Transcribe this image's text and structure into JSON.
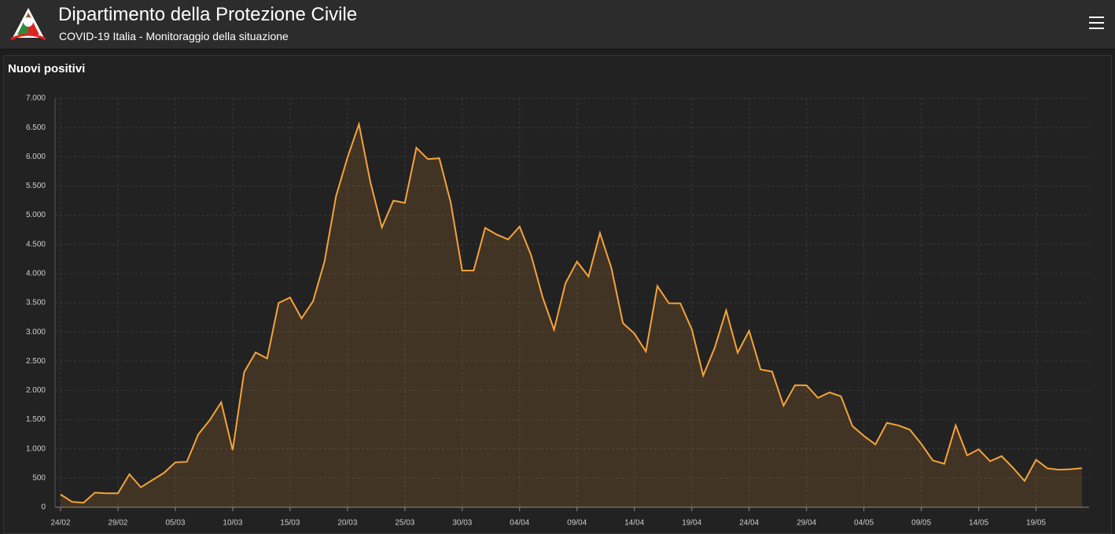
{
  "header": {
    "title": "Dipartimento della Protezione Civile",
    "subtitle": "COVID-19 Italia - Monitoraggio della situazione"
  },
  "chart_data": {
    "type": "area",
    "title": "Nuovi positivi",
    "color": "#f5a33a",
    "grid": true,
    "categories": [
      "24/02",
      null,
      null,
      null,
      null,
      "29/02",
      null,
      null,
      null,
      null,
      "05/03",
      null,
      null,
      null,
      null,
      "10/03",
      null,
      null,
      null,
      null,
      "15/03",
      null,
      null,
      null,
      null,
      "20/03",
      null,
      null,
      null,
      null,
      "25/03",
      null,
      null,
      null,
      null,
      "30/03",
      null,
      null,
      null,
      null,
      "04/04",
      null,
      null,
      null,
      null,
      "09/04",
      null,
      null,
      null,
      null,
      "14/04",
      null,
      null,
      null,
      null,
      "19/04",
      null,
      null,
      null,
      null,
      "24/04",
      null,
      null,
      null,
      null,
      "29/04",
      null,
      null,
      null,
      null,
      "04/05",
      null,
      null,
      null,
      null,
      "09/05",
      null,
      null,
      null,
      null,
      "14/05",
      null,
      null,
      null,
      null,
      "19/05",
      null,
      null,
      null,
      null
    ],
    "values": [
      221,
      93,
      78,
      250,
      238,
      240,
      566,
      342,
      466,
      587,
      769,
      778,
      1247,
      1492,
      1797,
      977,
      2313,
      2651,
      2547,
      3497,
      3590,
      3233,
      3526,
      4207,
      5322,
      5986,
      6557,
      5560,
      4789,
      5249,
      5210,
      6153,
      5959,
      5974,
      5217,
      4050,
      4053,
      4782,
      4668,
      4585,
      4805,
      4316,
      3599,
      3039,
      3836,
      4204,
      3951,
      4694,
      4092,
      3153,
      2972,
      2667,
      3786,
      3493,
      3491,
      3047,
      2256,
      2729,
      3370,
      2646,
      3021,
      2357,
      2324,
      1739,
      2091,
      2086,
      1872,
      1965,
      1900,
      1389,
      1221,
      1075,
      1444,
      1401,
      1327,
      1083,
      802,
      744,
      1402,
      888,
      992,
      789,
      875,
      675,
      451,
      813,
      665,
      642,
      652,
      669
    ],
    "ylim": [
      0,
      7000
    ],
    "yticks": [
      0,
      500,
      {
        "value": 1000,
        "label": "1.000"
      },
      {
        "value": 1500,
        "label": "1.500"
      },
      {
        "value": 2000,
        "label": "2.000"
      },
      {
        "value": 2500,
        "label": "2.500"
      },
      {
        "value": 3000,
        "label": "3.000"
      },
      {
        "value": 3500,
        "label": "3.500"
      },
      {
        "value": 4000,
        "label": "4.000"
      },
      {
        "value": 4500,
        "label": "4.500"
      },
      {
        "value": 5000,
        "label": "5.000"
      },
      {
        "value": 5500,
        "label": "5.500"
      },
      {
        "value": 6000,
        "label": "6.000"
      },
      {
        "value": 6500,
        "label": "6.500"
      },
      {
        "value": 7000,
        "label": "7.000"
      }
    ]
  }
}
